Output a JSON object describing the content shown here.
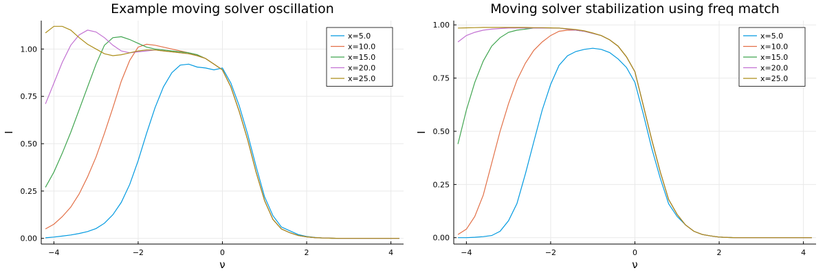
{
  "chart_data": [
    {
      "type": "line",
      "title": "Example moving solver oscillation",
      "xlabel": "ν",
      "ylabel": "I",
      "xlim": [
        -4.3,
        4.3
      ],
      "ylim": [
        -0.03,
        1.15
      ],
      "xticks": [
        -4,
        -2,
        0,
        2,
        4
      ],
      "xtick_labels": [
        "−4",
        "−2",
        "0",
        "2",
        "4"
      ],
      "yticks": [
        0,
        0.25,
        0.5,
        0.75,
        1.0
      ],
      "ytick_labels": [
        "0.00",
        "0.25",
        "0.50",
        "0.75",
        "1.00"
      ],
      "grid": true,
      "legend_position": "top-right",
      "series": [
        {
          "name": "x=5.0",
          "color": "#0099e0",
          "x": [
            -4.2,
            -4.0,
            -3.8,
            -3.6,
            -3.4,
            -3.2,
            -3.0,
            -2.8,
            -2.6,
            -2.4,
            -2.2,
            -2.0,
            -1.8,
            -1.6,
            -1.4,
            -1.2,
            -1.0,
            -0.8,
            -0.6,
            -0.4,
            -0.2,
            0.0,
            0.2,
            0.4,
            0.6,
            0.8,
            1.0,
            1.2,
            1.4,
            1.6,
            1.8,
            2.0,
            2.2,
            2.4,
            2.6,
            2.8,
            3.0,
            3.2,
            3.4,
            3.6,
            3.8,
            4.0,
            4.2
          ],
          "y": [
            0.003,
            0.007,
            0.012,
            0.018,
            0.026,
            0.036,
            0.052,
            0.08,
            0.125,
            0.19,
            0.285,
            0.41,
            0.555,
            0.69,
            0.8,
            0.875,
            0.915,
            0.92,
            0.905,
            0.9,
            0.89,
            0.9,
            0.82,
            0.7,
            0.55,
            0.38,
            0.22,
            0.12,
            0.06,
            0.04,
            0.02,
            0.01,
            0.005,
            0.002,
            0.001,
            0.0,
            0.0,
            0.0,
            0.0,
            0.0,
            0.0,
            0.0,
            0.0
          ]
        },
        {
          "name": "x=10.0",
          "color": "#e26f46",
          "x": [
            -4.2,
            -4.0,
            -3.8,
            -3.6,
            -3.4,
            -3.2,
            -3.0,
            -2.8,
            -2.6,
            -2.4,
            -2.2,
            -2.0,
            -1.8,
            -1.6,
            -1.4,
            -1.2,
            -1.0,
            -0.8,
            -0.6,
            -0.4,
            -0.2,
            0.0,
            0.2,
            0.4,
            0.6,
            0.8,
            1.0,
            1.2,
            1.4,
            1.6,
            1.8,
            2.0,
            2.2,
            2.4,
            2.6,
            2.8,
            3.0,
            3.2,
            3.4,
            3.6,
            3.8,
            4.0,
            4.2
          ],
          "y": [
            0.05,
            0.075,
            0.115,
            0.165,
            0.235,
            0.325,
            0.43,
            0.555,
            0.69,
            0.83,
            0.94,
            1.01,
            1.025,
            1.02,
            1.01,
            1.0,
            0.99,
            0.98,
            0.97,
            0.95,
            0.92,
            0.89,
            0.8,
            0.67,
            0.52,
            0.35,
            0.2,
            0.1,
            0.05,
            0.03,
            0.015,
            0.008,
            0.004,
            0.002,
            0.001,
            0.0,
            0.0,
            0.0,
            0.0,
            0.0,
            0.0,
            0.0,
            0.0
          ]
        },
        {
          "name": "x=15.0",
          "color": "#3ea44e",
          "x": [
            -4.2,
            -4.0,
            -3.8,
            -3.6,
            -3.4,
            -3.2,
            -3.0,
            -2.8,
            -2.6,
            -2.4,
            -2.2,
            -2.0,
            -1.8,
            -1.6,
            -1.4,
            -1.2,
            -1.0,
            -0.8,
            -0.6,
            -0.4,
            -0.2,
            0.0,
            0.2,
            0.4,
            0.6,
            0.8,
            1.0,
            1.2,
            1.4,
            1.6,
            1.8,
            2.0,
            2.2,
            2.4,
            2.6,
            2.8,
            3.0,
            3.2,
            3.4,
            3.6,
            3.8,
            4.0,
            4.2
          ],
          "y": [
            0.27,
            0.35,
            0.45,
            0.56,
            0.68,
            0.8,
            0.92,
            1.02,
            1.06,
            1.065,
            1.05,
            1.03,
            1.01,
            1.0,
            0.995,
            0.99,
            0.985,
            0.98,
            0.97,
            0.95,
            0.92,
            0.89,
            0.8,
            0.67,
            0.52,
            0.35,
            0.2,
            0.1,
            0.05,
            0.03,
            0.015,
            0.008,
            0.004,
            0.002,
            0.001,
            0.0,
            0.0,
            0.0,
            0.0,
            0.0,
            0.0,
            0.0,
            0.0
          ]
        },
        {
          "name": "x=20.0",
          "color": "#c271d2",
          "x": [
            -4.2,
            -4.0,
            -3.8,
            -3.6,
            -3.4,
            -3.2,
            -3.0,
            -2.8,
            -2.6,
            -2.4,
            -2.2,
            -2.0,
            -1.8,
            -1.6,
            -1.4,
            -1.2,
            -1.0,
            -0.8,
            -0.6,
            -0.4,
            -0.2,
            0.0,
            0.2,
            0.4,
            0.6,
            0.8,
            1.0,
            1.2,
            1.4,
            1.6,
            1.8,
            2.0,
            2.2,
            2.4,
            2.6,
            2.8,
            3.0,
            3.2,
            3.4,
            3.6,
            3.8,
            4.0,
            4.2
          ],
          "y": [
            0.71,
            0.82,
            0.93,
            1.02,
            1.075,
            1.1,
            1.09,
            1.06,
            1.02,
            0.99,
            0.98,
            0.985,
            0.99,
            0.995,
            0.99,
            0.985,
            0.98,
            0.975,
            0.965,
            0.95,
            0.92,
            0.89,
            0.8,
            0.67,
            0.52,
            0.35,
            0.2,
            0.1,
            0.05,
            0.03,
            0.015,
            0.008,
            0.004,
            0.002,
            0.001,
            0.0,
            0.0,
            0.0,
            0.0,
            0.0,
            0.0,
            0.0,
            0.0
          ]
        },
        {
          "name": "x=25.0",
          "color": "#ac8d18",
          "x": [
            -4.2,
            -4.0,
            -3.8,
            -3.6,
            -3.4,
            -3.2,
            -3.0,
            -2.8,
            -2.6,
            -2.4,
            -2.2,
            -2.0,
            -1.8,
            -1.6,
            -1.4,
            -1.2,
            -1.0,
            -0.8,
            -0.6,
            -0.4,
            -0.2,
            0.0,
            0.2,
            0.4,
            0.6,
            0.8,
            1.0,
            1.2,
            1.4,
            1.6,
            1.8,
            2.0,
            2.2,
            2.4,
            2.6,
            2.8,
            3.0,
            3.2,
            3.4,
            3.6,
            3.8,
            4.0,
            4.2
          ],
          "y": [
            1.085,
            1.12,
            1.12,
            1.1,
            1.06,
            1.025,
            1.0,
            0.975,
            0.965,
            0.97,
            0.98,
            0.99,
            0.995,
            0.995,
            0.99,
            0.985,
            0.98,
            0.975,
            0.965,
            0.95,
            0.92,
            0.89,
            0.8,
            0.67,
            0.52,
            0.35,
            0.2,
            0.1,
            0.05,
            0.03,
            0.015,
            0.008,
            0.004,
            0.002,
            0.001,
            0.0,
            0.0,
            0.0,
            0.0,
            0.0,
            0.0,
            0.0,
            0.0
          ]
        }
      ]
    },
    {
      "type": "line",
      "title": "Moving solver stabilization using freq match",
      "xlabel": "ν",
      "ylabel": "I",
      "xlim": [
        -4.3,
        4.3
      ],
      "ylim": [
        -0.03,
        1.02
      ],
      "xticks": [
        -4,
        -2,
        0,
        2,
        4
      ],
      "xtick_labels": [
        "−4",
        "−2",
        "0",
        "2",
        "4"
      ],
      "yticks": [
        0,
        0.25,
        0.5,
        0.75,
        1.0
      ],
      "ytick_labels": [
        "0.00",
        "0.25",
        "0.50",
        "0.75",
        "1.00"
      ],
      "grid": true,
      "legend_position": "top-right",
      "series": [
        {
          "name": "x=5.0",
          "color": "#0099e0",
          "x": [
            -4.2,
            -4.0,
            -3.8,
            -3.6,
            -3.4,
            -3.2,
            -3.0,
            -2.8,
            -2.6,
            -2.4,
            -2.2,
            -2.0,
            -1.8,
            -1.6,
            -1.4,
            -1.2,
            -1.0,
            -0.8,
            -0.6,
            -0.4,
            -0.2,
            0.0,
            0.2,
            0.4,
            0.6,
            0.8,
            1.0,
            1.2,
            1.4,
            1.6,
            1.8,
            2.0,
            2.2,
            2.4,
            2.6,
            2.8,
            3.0,
            3.2,
            3.4,
            3.6,
            3.8,
            4.0,
            4.2
          ],
          "y": [
            0.0,
            0.0,
            0.002,
            0.005,
            0.01,
            0.03,
            0.08,
            0.16,
            0.3,
            0.45,
            0.6,
            0.72,
            0.81,
            0.855,
            0.875,
            0.885,
            0.89,
            0.885,
            0.87,
            0.84,
            0.8,
            0.73,
            0.58,
            0.42,
            0.28,
            0.16,
            0.1,
            0.06,
            0.03,
            0.015,
            0.008,
            0.003,
            0.001,
            0.0,
            0.0,
            0.0,
            0.0,
            0.0,
            0.0,
            0.0,
            0.0,
            0.0,
            0.0
          ]
        },
        {
          "name": "x=10.0",
          "color": "#e26f46",
          "x": [
            -4.2,
            -4.0,
            -3.8,
            -3.6,
            -3.4,
            -3.2,
            -3.0,
            -2.8,
            -2.6,
            -2.4,
            -2.2,
            -2.0,
            -1.8,
            -1.6,
            -1.4,
            -1.2,
            -1.0,
            -0.8,
            -0.6,
            -0.4,
            -0.2,
            0.0,
            0.2,
            0.4,
            0.6,
            0.8,
            1.0,
            1.2,
            1.4,
            1.6,
            1.8,
            2.0,
            2.2,
            2.4,
            2.6,
            2.8,
            3.0,
            3.2,
            3.4,
            3.6,
            3.8,
            4.0,
            4.2
          ],
          "y": [
            0.015,
            0.04,
            0.1,
            0.2,
            0.35,
            0.5,
            0.63,
            0.74,
            0.82,
            0.88,
            0.92,
            0.95,
            0.97,
            0.975,
            0.975,
            0.97,
            0.96,
            0.95,
            0.93,
            0.9,
            0.85,
            0.78,
            0.62,
            0.46,
            0.31,
            0.18,
            0.11,
            0.06,
            0.03,
            0.015,
            0.008,
            0.003,
            0.001,
            0.0,
            0.0,
            0.0,
            0.0,
            0.0,
            0.0,
            0.0,
            0.0,
            0.0,
            0.0
          ]
        },
        {
          "name": "x=15.0",
          "color": "#3ea44e",
          "x": [
            -4.2,
            -4.0,
            -3.8,
            -3.6,
            -3.4,
            -3.2,
            -3.0,
            -2.8,
            -2.6,
            -2.4,
            -2.2,
            -2.0,
            -1.8,
            -1.6,
            -1.4,
            -1.2,
            -1.0,
            -0.8,
            -0.6,
            -0.4,
            -0.2,
            0.0,
            0.2,
            0.4,
            0.6,
            0.8,
            1.0,
            1.2,
            1.4,
            1.6,
            1.8,
            2.0,
            2.2,
            2.4,
            2.6,
            2.8,
            3.0,
            3.2,
            3.4,
            3.6,
            3.8,
            4.0,
            4.2
          ],
          "y": [
            0.44,
            0.6,
            0.73,
            0.83,
            0.9,
            0.94,
            0.965,
            0.975,
            0.98,
            0.985,
            0.985,
            0.985,
            0.985,
            0.98,
            0.975,
            0.97,
            0.96,
            0.95,
            0.93,
            0.9,
            0.85,
            0.78,
            0.62,
            0.46,
            0.31,
            0.18,
            0.11,
            0.06,
            0.03,
            0.015,
            0.008,
            0.003,
            0.001,
            0.0,
            0.0,
            0.0,
            0.0,
            0.0,
            0.0,
            0.0,
            0.0,
            0.0,
            0.0
          ]
        },
        {
          "name": "x=20.0",
          "color": "#c271d2",
          "x": [
            -4.2,
            -4.0,
            -3.8,
            -3.6,
            -3.4,
            -3.2,
            -3.0,
            -2.8,
            -2.6,
            -2.4,
            -2.2,
            -2.0,
            -1.8,
            -1.6,
            -1.4,
            -1.2,
            -1.0,
            -0.8,
            -0.6,
            -0.4,
            -0.2,
            0.0,
            0.2,
            0.4,
            0.6,
            0.8,
            1.0,
            1.2,
            1.4,
            1.6,
            1.8,
            2.0,
            2.2,
            2.4,
            2.6,
            2.8,
            3.0,
            3.2,
            3.4,
            3.6,
            3.8,
            4.0,
            4.2
          ],
          "y": [
            0.92,
            0.95,
            0.965,
            0.975,
            0.98,
            0.983,
            0.985,
            0.985,
            0.985,
            0.985,
            0.985,
            0.985,
            0.985,
            0.98,
            0.975,
            0.97,
            0.96,
            0.95,
            0.93,
            0.9,
            0.85,
            0.78,
            0.62,
            0.46,
            0.31,
            0.18,
            0.11,
            0.06,
            0.03,
            0.015,
            0.008,
            0.003,
            0.001,
            0.0,
            0.0,
            0.0,
            0.0,
            0.0,
            0.0,
            0.0,
            0.0,
            0.0,
            0.0
          ]
        },
        {
          "name": "x=25.0",
          "color": "#ac8d18",
          "x": [
            -4.2,
            -4.0,
            -3.8,
            -3.6,
            -3.4,
            -3.2,
            -3.0,
            -2.8,
            -2.6,
            -2.4,
            -2.2,
            -2.0,
            -1.8,
            -1.6,
            -1.4,
            -1.2,
            -1.0,
            -0.8,
            -0.6,
            -0.4,
            -0.2,
            0.0,
            0.2,
            0.4,
            0.6,
            0.8,
            1.0,
            1.2,
            1.4,
            1.6,
            1.8,
            2.0,
            2.2,
            2.4,
            2.6,
            2.8,
            3.0,
            3.2,
            3.4,
            3.6,
            3.8,
            4.0,
            4.2
          ],
          "y": [
            0.985,
            0.986,
            0.987,
            0.988,
            0.988,
            0.988,
            0.988,
            0.988,
            0.988,
            0.987,
            0.987,
            0.986,
            0.985,
            0.982,
            0.978,
            0.972,
            0.962,
            0.95,
            0.93,
            0.9,
            0.85,
            0.78,
            0.62,
            0.46,
            0.31,
            0.18,
            0.11,
            0.06,
            0.03,
            0.015,
            0.008,
            0.003,
            0.001,
            0.0,
            0.0,
            0.0,
            0.0,
            0.0,
            0.0,
            0.0,
            0.0,
            0.0,
            0.0
          ]
        }
      ]
    }
  ]
}
